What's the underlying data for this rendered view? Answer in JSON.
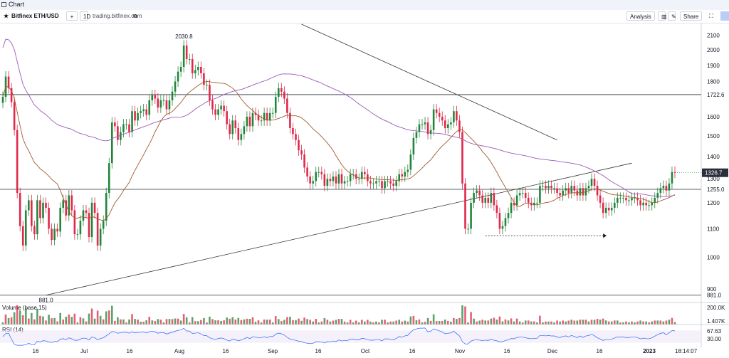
{
  "window": {
    "title": "Chart"
  },
  "toolbar": {
    "symbol": "Bitfinex ETH/USD",
    "interval": "1D",
    "link": "trading.bitfinex.com",
    "analysis_label": "Analysis",
    "share_label": "Share"
  },
  "colors": {
    "up": "#22863a",
    "down": "#e0284a",
    "ma_fast": "#a05a2c",
    "ma_slow": "#9b59b6",
    "line": "#333333"
  },
  "chart_data": {
    "type": "candlestick",
    "symbol": "ETH/USD",
    "interval": "1D",
    "price_axis": {
      "scale": "log",
      "range": [
        870,
        2180
      ],
      "ticks": [
        900,
        1000,
        1100,
        1200,
        1300,
        1400,
        1500,
        1600,
        1722.6,
        1800,
        1900,
        2000,
        2100
      ]
    },
    "time_axis": {
      "labels": [
        "16",
        "Jul",
        "16",
        "Aug",
        "16",
        "Sep",
        "16",
        "Oct",
        "16",
        "Nov",
        "16",
        "Dec",
        "16",
        "2023"
      ],
      "clock": "18:14:07"
    },
    "last_price": 1326.7,
    "horizontal_levels": [
      1722.6,
      1255.0,
      881.0
    ],
    "annotations": {
      "high": "2030.8",
      "low": "881.0"
    },
    "closes": [
      1710,
      1830,
      1760,
      1680,
      1530,
      1240,
      1110,
      1040,
      1170,
      1210,
      1110,
      1080,
      1210,
      1140,
      1200,
      1180,
      1100,
      1060,
      1100,
      1090,
      1180,
      1210,
      1150,
      1230,
      1170,
      1080,
      1080,
      1130,
      1170,
      1160,
      1070,
      1200,
      1160,
      1040,
      1100,
      1130,
      1240,
      1370,
      1570,
      1550,
      1480,
      1520,
      1560,
      1560,
      1520,
      1630,
      1580,
      1620,
      1630,
      1640,
      1610,
      1690,
      1720,
      1700,
      1650,
      1690,
      1690,
      1640,
      1690,
      1740,
      1800,
      1860,
      1890,
      2030,
      1940,
      1940,
      1850,
      1870,
      1890,
      1850,
      1780,
      1780,
      1690,
      1640,
      1610,
      1640,
      1660,
      1630,
      1560,
      1510,
      1580,
      1540,
      1480,
      1510,
      1550,
      1600,
      1550,
      1620,
      1610,
      1580,
      1580,
      1620,
      1580,
      1620,
      1620,
      1710,
      1760,
      1740,
      1700,
      1620,
      1540,
      1510,
      1480,
      1430,
      1410,
      1350,
      1310,
      1280,
      1290,
      1330,
      1330,
      1320,
      1270,
      1300,
      1290,
      1310,
      1280,
      1320,
      1280,
      1290,
      1290,
      1320,
      1320,
      1300,
      1300,
      1330,
      1320,
      1290,
      1280,
      1280,
      1290,
      1290,
      1260,
      1290,
      1290,
      1280,
      1270,
      1290,
      1320,
      1310,
      1330,
      1340,
      1410,
      1490,
      1520,
      1560,
      1560,
      1570,
      1510,
      1530,
      1640,
      1620,
      1600,
      1580,
      1540,
      1560,
      1570,
      1630,
      1580,
      1520,
      1280,
      1100,
      1100,
      1200,
      1240,
      1250,
      1230,
      1200,
      1220,
      1200,
      1240,
      1190,
      1160,
      1100,
      1110,
      1140,
      1160,
      1200,
      1190,
      1230,
      1240,
      1240,
      1220,
      1200,
      1190,
      1200,
      1200,
      1270,
      1270,
      1260,
      1270,
      1260,
      1260,
      1240,
      1230,
      1250,
      1260,
      1240,
      1270,
      1250,
      1230,
      1260,
      1230,
      1260,
      1270,
      1300,
      1270,
      1230,
      1200,
      1160,
      1180,
      1170,
      1180,
      1200,
      1220,
      1220,
      1220,
      1210,
      1210,
      1220,
      1220,
      1210,
      1190,
      1200,
      1190,
      1190,
      1200,
      1220,
      1240,
      1260,
      1270,
      1250,
      1280,
      1330,
      1327
    ],
    "series": [
      {
        "name": "price",
        "kind": "candles"
      },
      {
        "name": "ma_fast",
        "kind": "line"
      },
      {
        "name": "ma_slow",
        "kind": "line"
      }
    ],
    "volume": {
      "label": "Volume (base,15)",
      "axis_label": "200.0K",
      "last_label": "1.407K"
    },
    "rsi": {
      "label": "RSI (14)",
      "values_shown": [
        "67.63",
        "30.00"
      ]
    }
  }
}
